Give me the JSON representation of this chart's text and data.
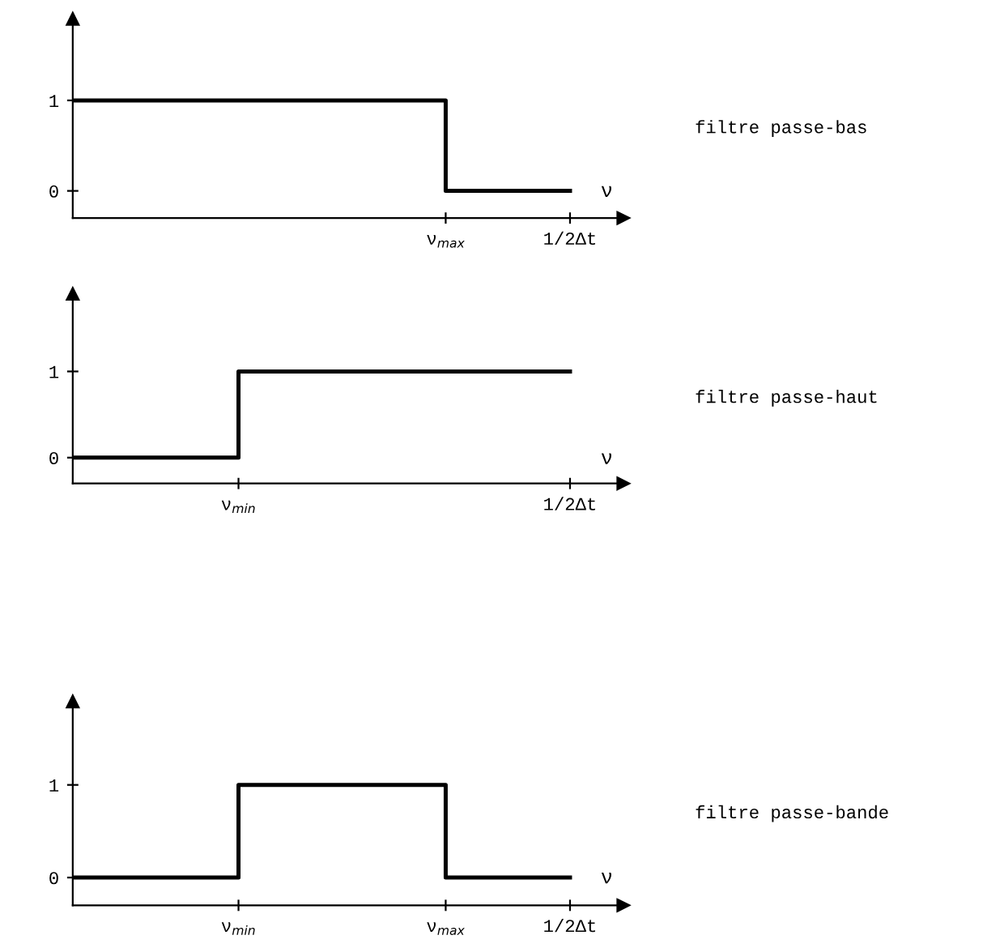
{
  "chart_data": [
    {
      "type": "step",
      "xlabel": "ν",
      "categories": [
        null,
        null,
        null,
        null,
        null,
        null,
        null,
        null,
        null,
        "ν$_{max}$",
        null,
        null,
        "1/2Δt"
      ],
      "values": [
        1,
        1,
        1,
        1,
        1,
        1,
        1,
        1,
        1,
        0,
        0,
        0,
        0
      ],
      "color": "#000000",
      "ylim": [
        -0.3,
        1.9
      ],
      "yticks": [
        0,
        1
      ],
      "grid": false,
      "legend": false,
      "marker": "none",
      "line_style": "solid",
      "annotations": [
        "filtre passe-bas"
      ]
    },
    {
      "type": "step",
      "xlabel": "ν",
      "categories": [
        null,
        null,
        null,
        null,
        "ν$_{min}$",
        null,
        null,
        null,
        null,
        null,
        null,
        null,
        "1/2Δt"
      ],
      "values": [
        0,
        0,
        0,
        0,
        1,
        1,
        1,
        1,
        1,
        1,
        1,
        1,
        1
      ],
      "color": "#000000",
      "ylim": [
        -0.3,
        1.9
      ],
      "yticks": [
        0,
        1
      ],
      "grid": false,
      "legend": false,
      "marker": "none",
      "line_style": "solid",
      "annotations": [
        "filtre passe-haut"
      ]
    },
    {
      "type": "step",
      "xlabel": "ν",
      "categories": [
        null,
        null,
        null,
        null,
        "ν$_{min}$",
        null,
        null,
        null,
        null,
        "ν$_{max}$",
        null,
        null,
        "1/2Δt"
      ],
      "values": [
        0,
        0,
        0,
        0,
        1,
        1,
        1,
        1,
        1,
        0,
        0,
        0,
        0
      ],
      "color": "#000000",
      "ylim": [
        -0.3,
        1.9
      ],
      "yticks": [
        0,
        1
      ],
      "grid": false,
      "legend": false,
      "marker": "none",
      "line_style": "solid",
      "annotations": [
        "filtre passe-bande"
      ]
    }
  ]
}
